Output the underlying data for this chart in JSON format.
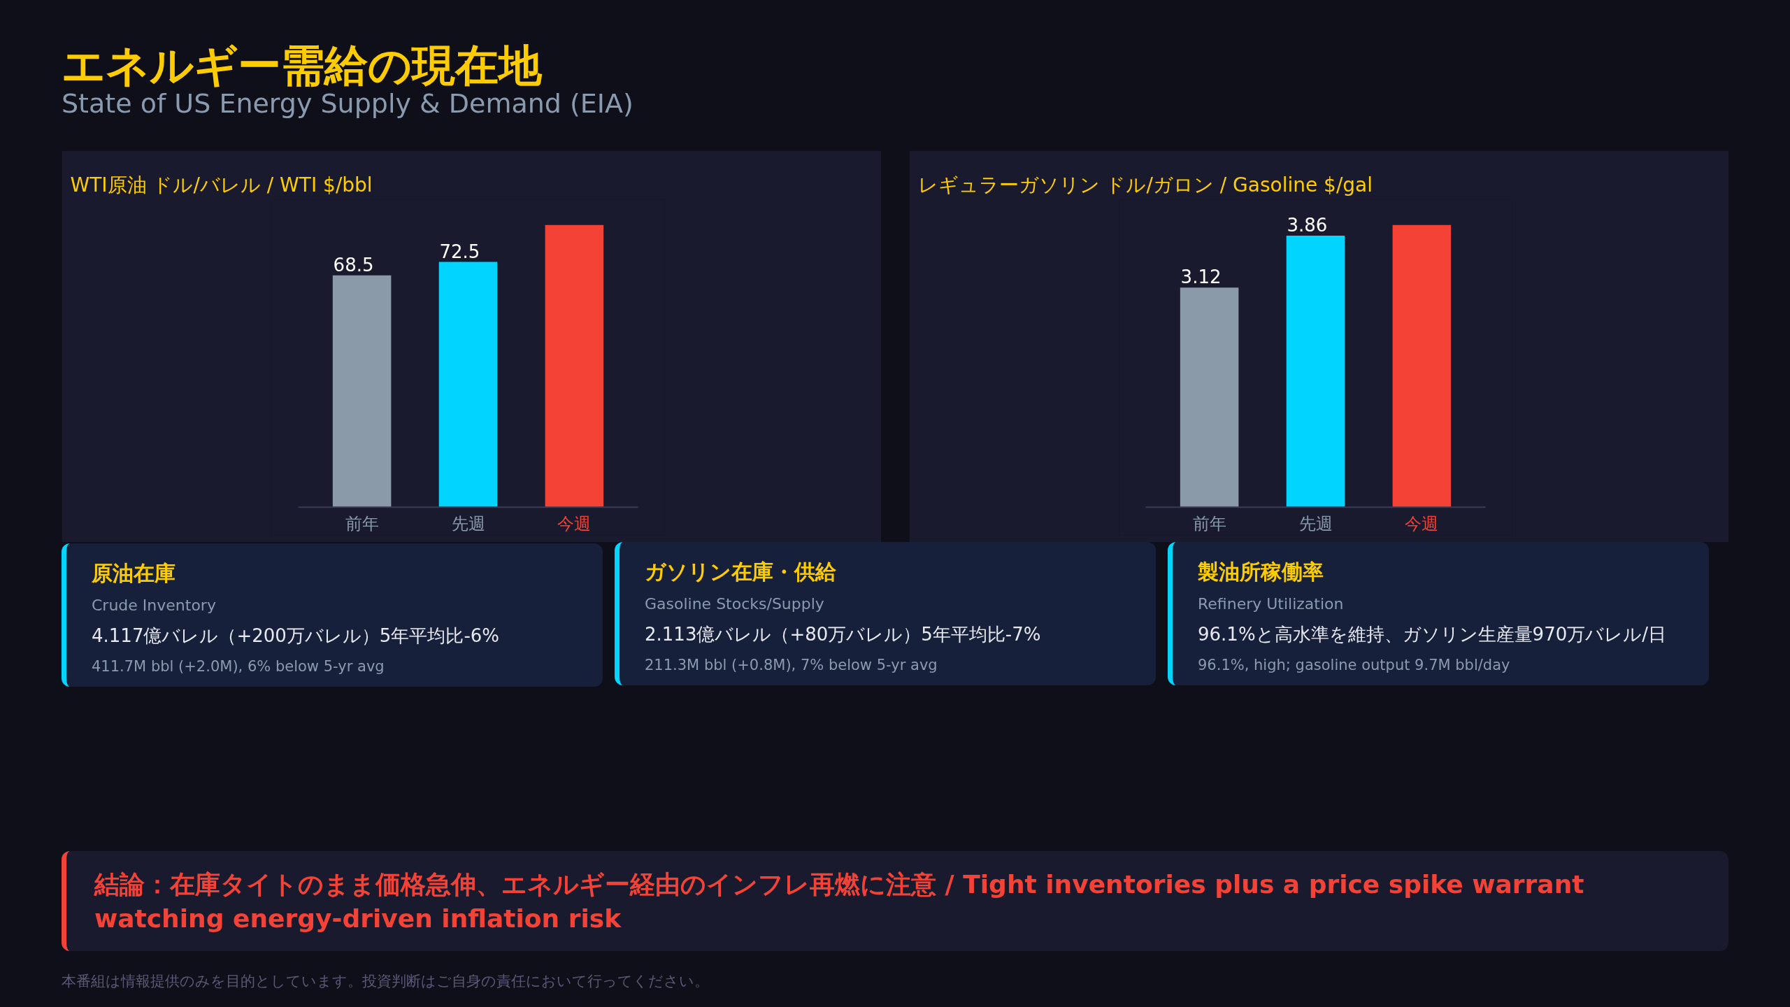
{
  "chart_data": [
    {
      "type": "other",
      "title": "エネルギー需給の現在地",
      "subtitle": "State of US Energy Supply & Demand (EIA)"
    },
    {
      "type": "bar",
      "title": "WTI原油 ドル/バレル / WTI $/bbl",
      "categories": [
        "前年",
        "先週",
        "今週"
      ],
      "values": [
        68.5,
        72.5,
        83.4
      ],
      "colors": [
        "#8a9aa8",
        "#00d4ff",
        "#f44336"
      ],
      "value_labels": [
        "68.5",
        "72.5",
        null
      ]
    },
    {
      "type": "bar",
      "title": "レギュラーガソリン ドル/ガロン / Gasoline $/gal",
      "categories": [
        "前年",
        "先週",
        "今週"
      ],
      "values": [
        3.12,
        3.86,
        4.01
      ],
      "colors": [
        "#8a9aa8",
        "#00d4ff",
        "#f44336"
      ],
      "value_labels": [
        "3.12",
        "3.86",
        null
      ]
    },
    {
      "type": "other",
      "title": "原油在庫",
      "subtitle": "Crude Inventory",
      "annotations": [
        "4.117億バレル（+200万バレル）5年平均比-6%",
        "411.7M bbl (+2.0M), 6% below 5-yr avg"
      ]
    },
    {
      "type": "other",
      "title": "ガソリン在庫・供給",
      "subtitle": "Gasoline Stocks/Supply",
      "annotations": [
        "2.113億バレル（+80万バレル）5年平均比-7%",
        "211.3M bbl (+0.8M), 7% below 5-yr avg"
      ]
    },
    {
      "type": "other",
      "title": "製油所稼働率",
      "subtitle": "Refinery Utilization",
      "annotations": [
        "96.1%と高水準を維持、ガソリン生産量970万バレル/日",
        "96.1%, high; gasoline output 9.7M bbl/day"
      ]
    },
    {
      "type": "other",
      "annotations": [
        "結論：在庫タイトのまま価格急伸、エネルギー経由のインフレ再燃に注意 / Tight inventories plus a price spike warrant watching energy-driven inflation risk",
        "本番組は情報提供のみを目的としています。投資判断はご自身の責任において行ってください。"
      ]
    }
  ]
}
